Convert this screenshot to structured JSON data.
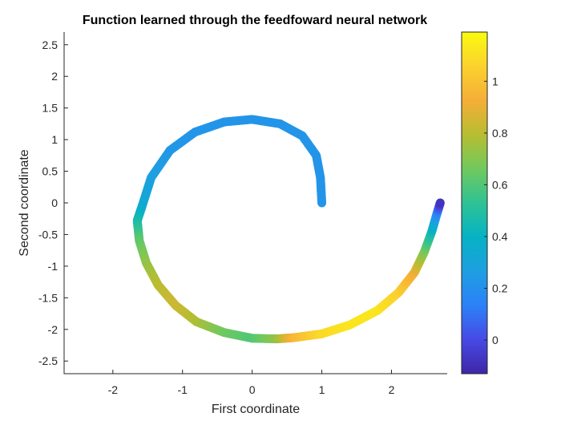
{
  "chart_data": {
    "type": "scatter",
    "title": "Function learned through the feedfoward neural network",
    "xlabel": "First coordinate",
    "ylabel": "Second coordinate",
    "xlim": [
      -2.7,
      2.8
    ],
    "ylim": [
      -2.7,
      2.7
    ],
    "xticks": [
      -2,
      -1,
      0,
      1,
      2
    ],
    "yticks": [
      -2.5,
      -2,
      -1.5,
      -1,
      -0.5,
      0,
      0.5,
      1,
      1.5,
      2,
      2.5
    ],
    "grid": false,
    "colormap": "parula",
    "colorbar": {
      "range": [
        -0.13,
        1.19
      ],
      "ticks": [
        0,
        0.2,
        0.4,
        0.6,
        0.8,
        1
      ],
      "tick_labels": [
        "0",
        "0.2",
        "0.4",
        "0.6",
        "0.8",
        "1"
      ]
    },
    "series": [
      {
        "marker": "filled-circle",
        "points": [
          {
            "x": 1.0,
            "y": 0.0,
            "c": 0.22
          },
          {
            "x": 0.98,
            "y": 0.4,
            "c": 0.22
          },
          {
            "x": 0.92,
            "y": 0.75,
            "c": 0.22
          },
          {
            "x": 0.72,
            "y": 1.06,
            "c": 0.22
          },
          {
            "x": 0.4,
            "y": 1.25,
            "c": 0.22
          },
          {
            "x": 0.0,
            "y": 1.32,
            "c": 0.22
          },
          {
            "x": -0.4,
            "y": 1.28,
            "c": 0.22
          },
          {
            "x": -0.82,
            "y": 1.12,
            "c": 0.22
          },
          {
            "x": -1.18,
            "y": 0.83,
            "c": 0.23
          },
          {
            "x": -1.45,
            "y": 0.4,
            "c": 0.27
          },
          {
            "x": -1.58,
            "y": -0.05,
            "c": 0.33
          },
          {
            "x": -1.65,
            "y": -0.28,
            "c": 0.45
          },
          {
            "x": -1.62,
            "y": -0.6,
            "c": 0.62
          },
          {
            "x": -1.52,
            "y": -0.95,
            "c": 0.72
          },
          {
            "x": -1.35,
            "y": -1.3,
            "c": 0.8
          },
          {
            "x": -1.1,
            "y": -1.62,
            "c": 0.84
          },
          {
            "x": -0.8,
            "y": -1.88,
            "c": 0.78
          },
          {
            "x": -0.4,
            "y": -2.05,
            "c": 0.66
          },
          {
            "x": 0.0,
            "y": -2.14,
            "c": 0.6
          },
          {
            "x": 0.35,
            "y": -2.15,
            "c": 0.72
          },
          {
            "x": 0.6,
            "y": -2.13,
            "c": 0.96
          },
          {
            "x": 1.0,
            "y": -2.07,
            "c": 1.08
          },
          {
            "x": 1.4,
            "y": -1.93,
            "c": 1.12
          },
          {
            "x": 1.8,
            "y": -1.7,
            "c": 1.12
          },
          {
            "x": 2.1,
            "y": -1.42,
            "c": 1.05
          },
          {
            "x": 2.33,
            "y": -1.1,
            "c": 0.92
          },
          {
            "x": 2.47,
            "y": -0.78,
            "c": 0.7
          },
          {
            "x": 2.58,
            "y": -0.45,
            "c": 0.44
          },
          {
            "x": 2.65,
            "y": -0.18,
            "c": 0.2
          },
          {
            "x": 2.7,
            "y": 0.0,
            "c": -0.08
          }
        ]
      }
    ]
  }
}
